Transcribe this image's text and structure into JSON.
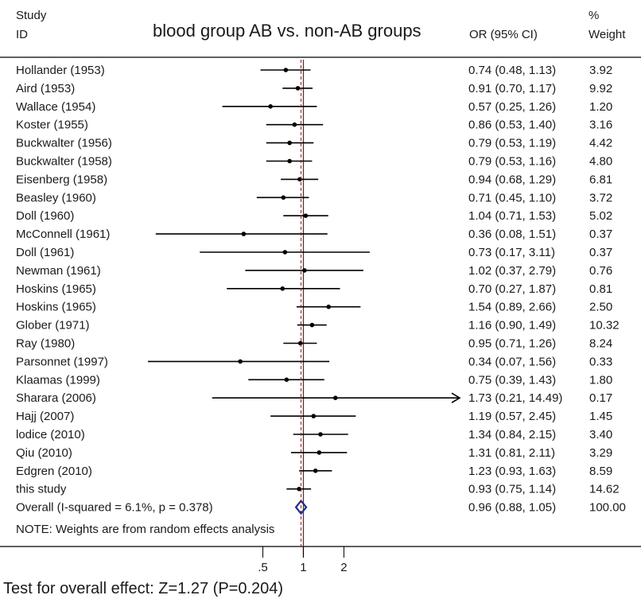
{
  "header": {
    "study_line1": "Study",
    "study_line2": "ID",
    "title": "blood group AB vs. non-AB groups",
    "or_label": "OR (95% CI)",
    "weight_line1": "%",
    "weight_line2": "Weight"
  },
  "note": "NOTE: Weights are from random effects analysis",
  "footer": "Test for overall effect: Z=1.27 (P=0.204)",
  "colors": {
    "diamond": "#1f2d8a",
    "reference_line": "#8b1a1a",
    "lines": "#000000"
  },
  "chart_data": {
    "type": "forest",
    "x_scale": "log",
    "xlim": [
      0.07,
      14.49
    ],
    "x_ticks": [
      ".5",
      "1",
      "2"
    ],
    "x_tick_values": [
      0.5,
      1,
      2
    ],
    "null_value": 1,
    "studies": [
      {
        "id": "Hollander  (1953)",
        "or": 0.74,
        "lo": 0.48,
        "hi": 1.13,
        "ci_text": "0.74 (0.48, 1.13)",
        "weight": "3.92"
      },
      {
        "id": "Aird (1953)",
        "or": 0.91,
        "lo": 0.7,
        "hi": 1.17,
        "ci_text": "0.91 (0.70, 1.17)",
        "weight": "9.92"
      },
      {
        "id": "Wallace (1954)",
        "or": 0.57,
        "lo": 0.25,
        "hi": 1.26,
        "ci_text": "0.57 (0.25, 1.26)",
        "weight": "1.20"
      },
      {
        "id": "Koster (1955)",
        "or": 0.86,
        "lo": 0.53,
        "hi": 1.4,
        "ci_text": "0.86 (0.53, 1.40)",
        "weight": "3.16"
      },
      {
        "id": "Buckwalter (1956)",
        "or": 0.79,
        "lo": 0.53,
        "hi": 1.19,
        "ci_text": "0.79 (0.53, 1.19)",
        "weight": "4.42"
      },
      {
        "id": "Buckwalter (1958)",
        "or": 0.79,
        "lo": 0.53,
        "hi": 1.16,
        "ci_text": "0.79 (0.53, 1.16)",
        "weight": "4.80"
      },
      {
        "id": "Eisenberg (1958)",
        "or": 0.94,
        "lo": 0.68,
        "hi": 1.29,
        "ci_text": "0.94 (0.68, 1.29)",
        "weight": "6.81"
      },
      {
        "id": "Beasley  (1960)",
        "or": 0.71,
        "lo": 0.45,
        "hi": 1.1,
        "ci_text": "0.71 (0.45, 1.10)",
        "weight": "3.72"
      },
      {
        "id": "Doll  (1960)",
        "or": 1.04,
        "lo": 0.71,
        "hi": 1.53,
        "ci_text": "1.04 (0.71, 1.53)",
        "weight": "5.02"
      },
      {
        "id": "McConnell  (1961)",
        "or": 0.36,
        "lo": 0.08,
        "hi": 1.51,
        "ci_text": "0.36 (0.08, 1.51)",
        "weight": "0.37"
      },
      {
        "id": "Doll  (1961)",
        "or": 0.73,
        "lo": 0.17,
        "hi": 3.11,
        "ci_text": "0.73 (0.17, 3.11)",
        "weight": "0.37"
      },
      {
        "id": "Newman  (1961)",
        "or": 1.02,
        "lo": 0.37,
        "hi": 2.79,
        "ci_text": "1.02 (0.37, 2.79)",
        "weight": "0.76"
      },
      {
        "id": "Hoskins  (1965)",
        "or": 0.7,
        "lo": 0.27,
        "hi": 1.87,
        "ci_text": "0.70 (0.27, 1.87)",
        "weight": "0.81"
      },
      {
        "id": "Hoskins  (1965)",
        "or": 1.54,
        "lo": 0.89,
        "hi": 2.66,
        "ci_text": "1.54 (0.89, 2.66)",
        "weight": "2.50"
      },
      {
        "id": "Glober  (1971)",
        "or": 1.16,
        "lo": 0.9,
        "hi": 1.49,
        "ci_text": "1.16 (0.90, 1.49)",
        "weight": "10.32"
      },
      {
        "id": "Ray  (1980)",
        "or": 0.95,
        "lo": 0.71,
        "hi": 1.26,
        "ci_text": "0.95 (0.71, 1.26)",
        "weight": "8.24"
      },
      {
        "id": "Parsonnet  (1997)",
        "or": 0.34,
        "lo": 0.07,
        "hi": 1.56,
        "ci_text": "0.34 (0.07, 1.56)",
        "weight": "0.33"
      },
      {
        "id": "Klaamas  (1999)",
        "or": 0.75,
        "lo": 0.39,
        "hi": 1.43,
        "ci_text": "0.75 (0.39, 1.43)",
        "weight": "1.80"
      },
      {
        "id": "Sharara  (2006)",
        "or": 1.73,
        "lo": 0.21,
        "hi": 14.49,
        "ci_text": "1.73 (0.21, 14.49)",
        "weight": "0.17",
        "arrow_right": true
      },
      {
        "id": "Hajj (2007)",
        "or": 1.19,
        "lo": 0.57,
        "hi": 2.45,
        "ci_text": "1.19 (0.57, 2.45)",
        "weight": "1.45"
      },
      {
        "id": "lodice  (2010)",
        "or": 1.34,
        "lo": 0.84,
        "hi": 2.15,
        "ci_text": "1.34 (0.84, 2.15)",
        "weight": "3.40"
      },
      {
        "id": "Qiu (2010)",
        "or": 1.31,
        "lo": 0.81,
        "hi": 2.11,
        "ci_text": "1.31 (0.81, 2.11)",
        "weight": "3.29"
      },
      {
        "id": "Edgren  (2010)",
        "or": 1.23,
        "lo": 0.93,
        "hi": 1.63,
        "ci_text": "1.23 (0.93, 1.63)",
        "weight": "8.59"
      },
      {
        "id": "this study",
        "or": 0.93,
        "lo": 0.75,
        "hi": 1.14,
        "ci_text": "0.93 (0.75, 1.14)",
        "weight": "14.62"
      }
    ],
    "overall": {
      "id": "Overall  (I-squared = 6.1%, p = 0.378)",
      "or": 0.96,
      "lo": 0.88,
      "hi": 1.05,
      "ci_text": "0.96 (0.88, 1.05)",
      "weight": "100.00"
    }
  }
}
